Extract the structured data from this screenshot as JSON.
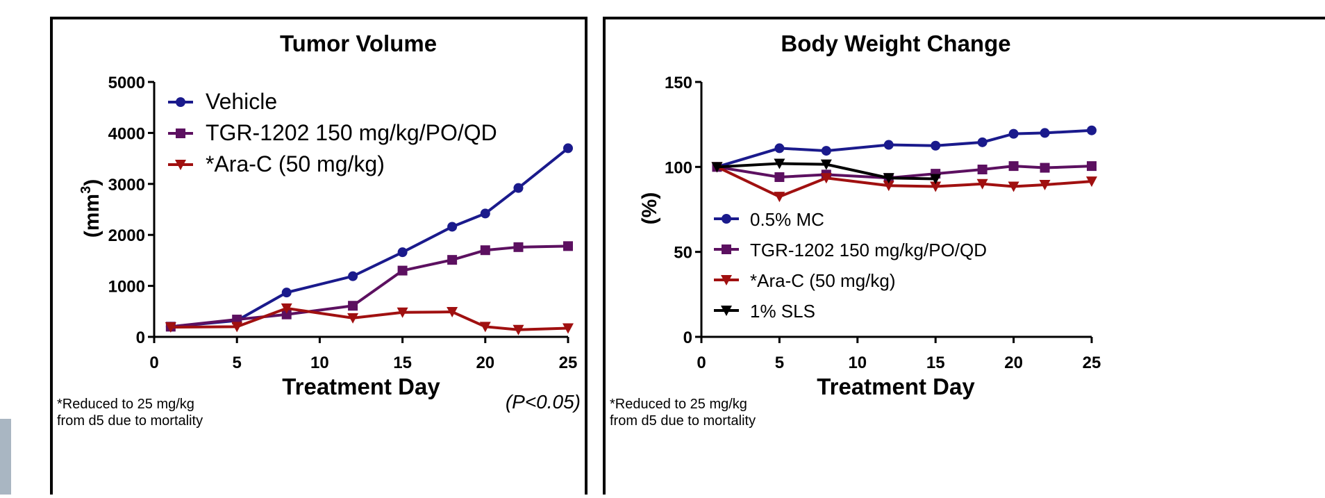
{
  "chart_data": [
    {
      "type": "line",
      "title": "Tumor Volume",
      "xlabel": "Treatment Day",
      "ylabel": "(mm",
      "ylabel_sup": "3",
      "ylabel_close": ")",
      "xlim": [
        0,
        25
      ],
      "ylim": [
        0,
        5000
      ],
      "xticks": [
        0,
        5,
        10,
        15,
        20,
        25
      ],
      "yticks": [
        0,
        1000,
        2000,
        3000,
        4000,
        5000
      ],
      "legend_position": "top-left",
      "footnote_line1": "*Reduced to 25 mg/kg",
      "footnote_line2": "from d5 due to mortality",
      "pvalue": "(P<0.05)",
      "series": [
        {
          "name": "Vehicle",
          "color": "#1a1a8c",
          "marker": "circle",
          "x": [
            1,
            5,
            8,
            12,
            15,
            18,
            20,
            22,
            25
          ],
          "y": [
            200,
            320,
            870,
            1190,
            1660,
            2160,
            2420,
            2920,
            3700
          ]
        },
        {
          "name": "TGR-1202 150 mg/kg/PO/QD",
          "color": "#5c1060",
          "marker": "square",
          "x": [
            1,
            5,
            8,
            12,
            15,
            18,
            20,
            22,
            25
          ],
          "y": [
            200,
            340,
            440,
            610,
            1300,
            1510,
            1700,
            1760,
            1780
          ]
        },
        {
          "name": "*Ara-C (50 mg/kg)",
          "color": "#a01010",
          "marker": "triangle-down",
          "x": [
            1,
            5,
            8,
            12,
            15,
            18,
            20,
            22,
            25
          ],
          "y": [
            190,
            200,
            560,
            370,
            480,
            490,
            200,
            140,
            170
          ]
        }
      ]
    },
    {
      "type": "line",
      "title": "Body  Weight Change",
      "xlabel": "Treatment Day",
      "ylabel": "(%)",
      "xlim": [
        0,
        25
      ],
      "ylim": [
        0,
        150
      ],
      "xticks": [
        0,
        5,
        10,
        15,
        20,
        25
      ],
      "yticks": [
        0,
        50,
        100,
        150
      ],
      "legend_position": "center-left",
      "footnote_line1": "*Reduced to 25 mg/kg",
      "footnote_line2": "from d5 due to mortality",
      "series": [
        {
          "name": "0.5% MC",
          "color": "#1a1a8c",
          "marker": "circle",
          "x": [
            1,
            5,
            8,
            12,
            15,
            18,
            20,
            22,
            25
          ],
          "y": [
            100,
            111,
            109.5,
            113,
            112.5,
            114.5,
            119.5,
            120,
            121.5
          ]
        },
        {
          "name": "TGR-1202 150 mg/kg/PO/QD",
          "color": "#5c1060",
          "marker": "square",
          "x": [
            1,
            5,
            8,
            12,
            15,
            18,
            20,
            22,
            25
          ],
          "y": [
            100,
            94,
            95.5,
            93.5,
            96,
            98.5,
            100.5,
            99.5,
            100.5
          ]
        },
        {
          "name": "*Ara-C (50 mg/kg)",
          "color": "#a01010",
          "marker": "triangle-down",
          "x": [
            1,
            5,
            8,
            12,
            15,
            18,
            20,
            22,
            25
          ],
          "y": [
            100,
            82.5,
            93.5,
            89,
            88.5,
            90,
            88.5,
            89.5,
            91.5
          ]
        },
        {
          "name": "1% SLS",
          "color": "#000000",
          "marker": "triangle-down",
          "x": [
            1,
            5,
            8,
            12,
            15
          ],
          "y": [
            100,
            102,
            101.5,
            93.5,
            93
          ]
        }
      ]
    }
  ]
}
